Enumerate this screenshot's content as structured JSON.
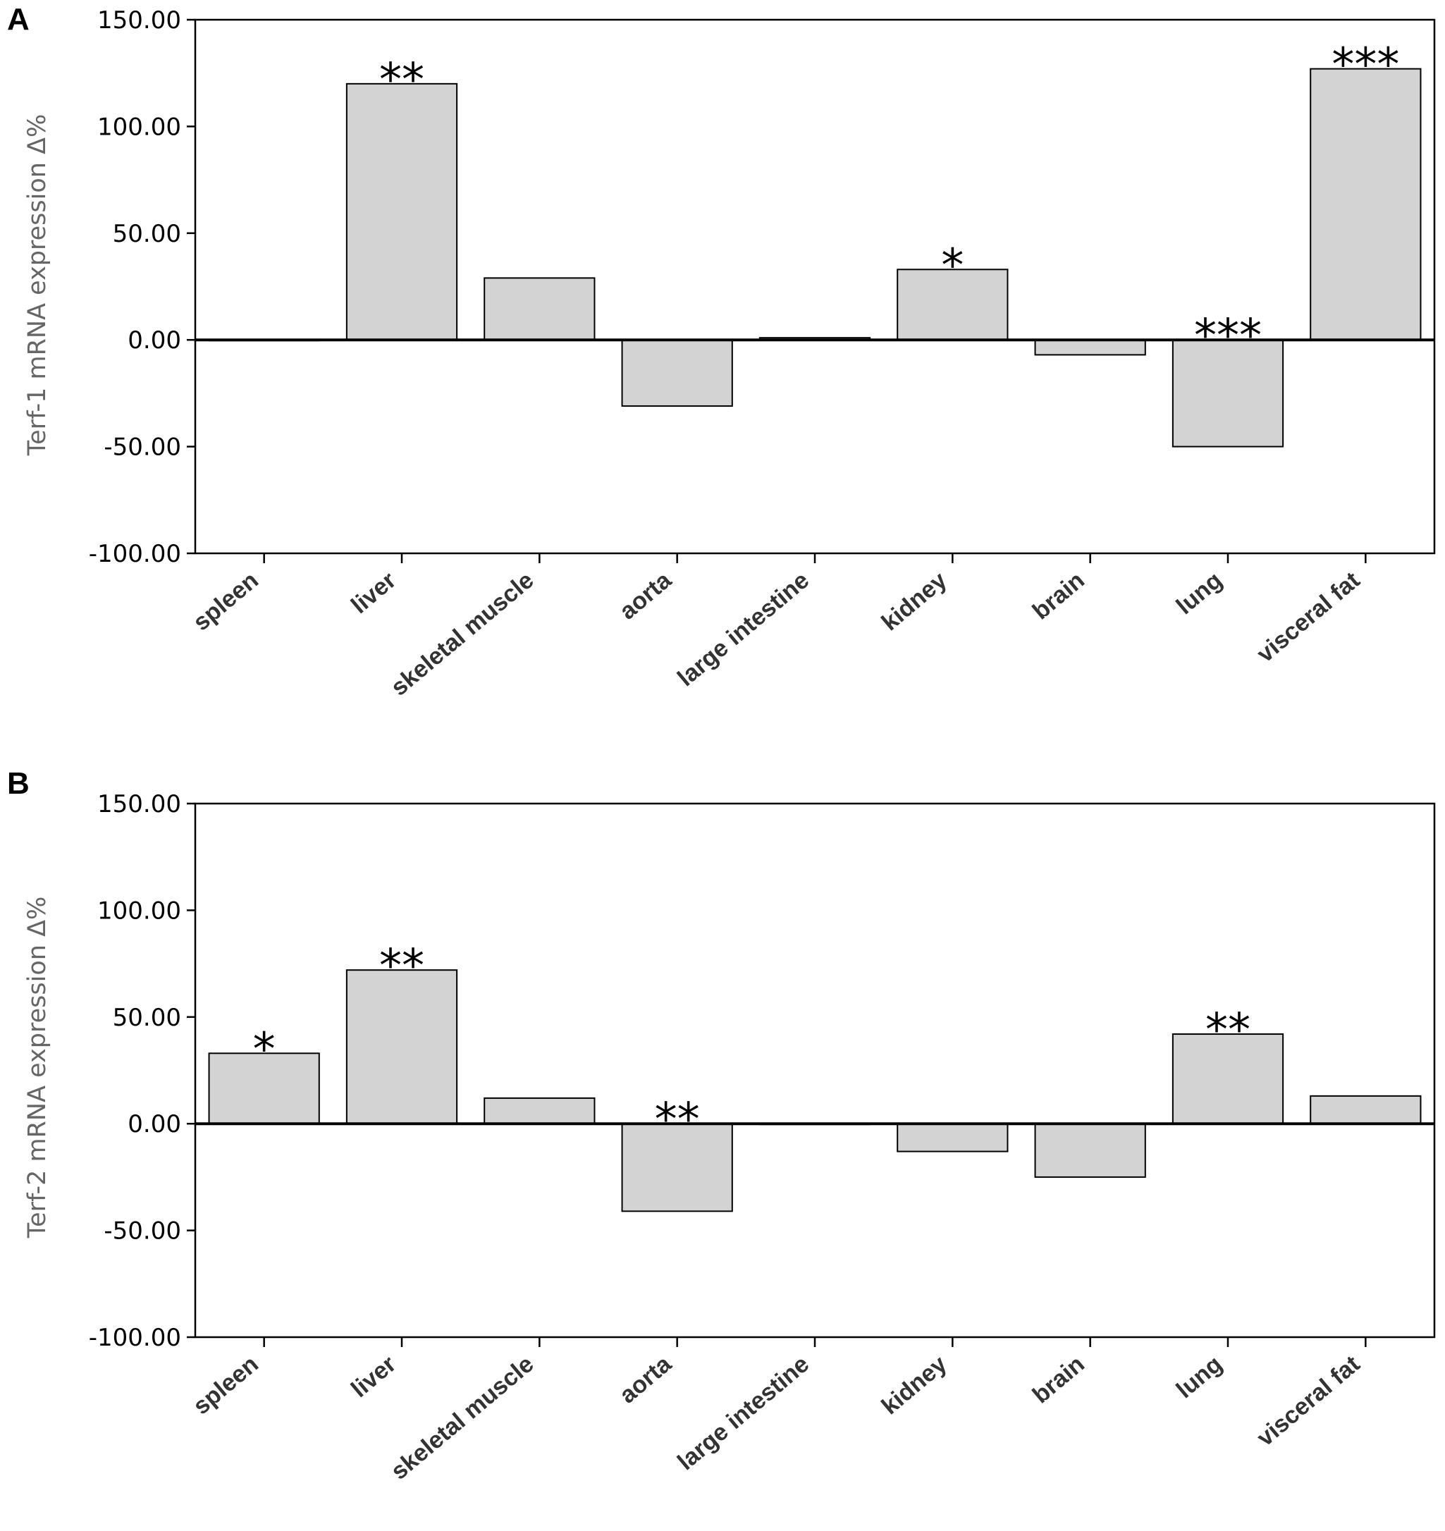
{
  "chart_data": [
    {
      "type": "bar",
      "panel": "A",
      "ylabel": "Terf-1 mRNA expression Δ%",
      "ylim": [
        -100,
        150
      ],
      "yticks": [
        -100,
        -50,
        0,
        50,
        100,
        150
      ],
      "ytick_labels": [
        "-100.00",
        "-50.00",
        "0.00",
        "50.00",
        "100.00",
        "150.00"
      ],
      "categories": [
        "spleen",
        "liver",
        "skeletal muscle",
        "aorta",
        "large intestine",
        "kidney",
        "brain",
        "lung",
        "visceral fat"
      ],
      "values": [
        0,
        120,
        29,
        -31,
        1,
        33,
        -7,
        -50,
        127
      ],
      "significance": [
        "",
        "**",
        "",
        "",
        "",
        "*",
        "",
        "***",
        "***"
      ],
      "grid": false,
      "bar_color": "#d3d3d3"
    },
    {
      "type": "bar",
      "panel": "B",
      "ylabel": "Terf-2 mRNA expression Δ%",
      "ylim": [
        -100,
        150
      ],
      "yticks": [
        -100,
        -50,
        0,
        50,
        100,
        150
      ],
      "ytick_labels": [
        "-100.00",
        "-50.00",
        "0.00",
        "50.00",
        "100.00",
        "150.00"
      ],
      "categories": [
        "spleen",
        "liver",
        "skeletal muscle",
        "aorta",
        "large intestine",
        "kidney",
        "brain",
        "lung",
        "visceral fat"
      ],
      "values": [
        33,
        72,
        12,
        -41,
        0,
        -13,
        -25,
        42,
        13
      ],
      "significance": [
        "*",
        "**",
        "",
        "**",
        "",
        "",
        "",
        "**",
        ""
      ],
      "grid": false,
      "bar_color": "#d3d3d3"
    }
  ]
}
